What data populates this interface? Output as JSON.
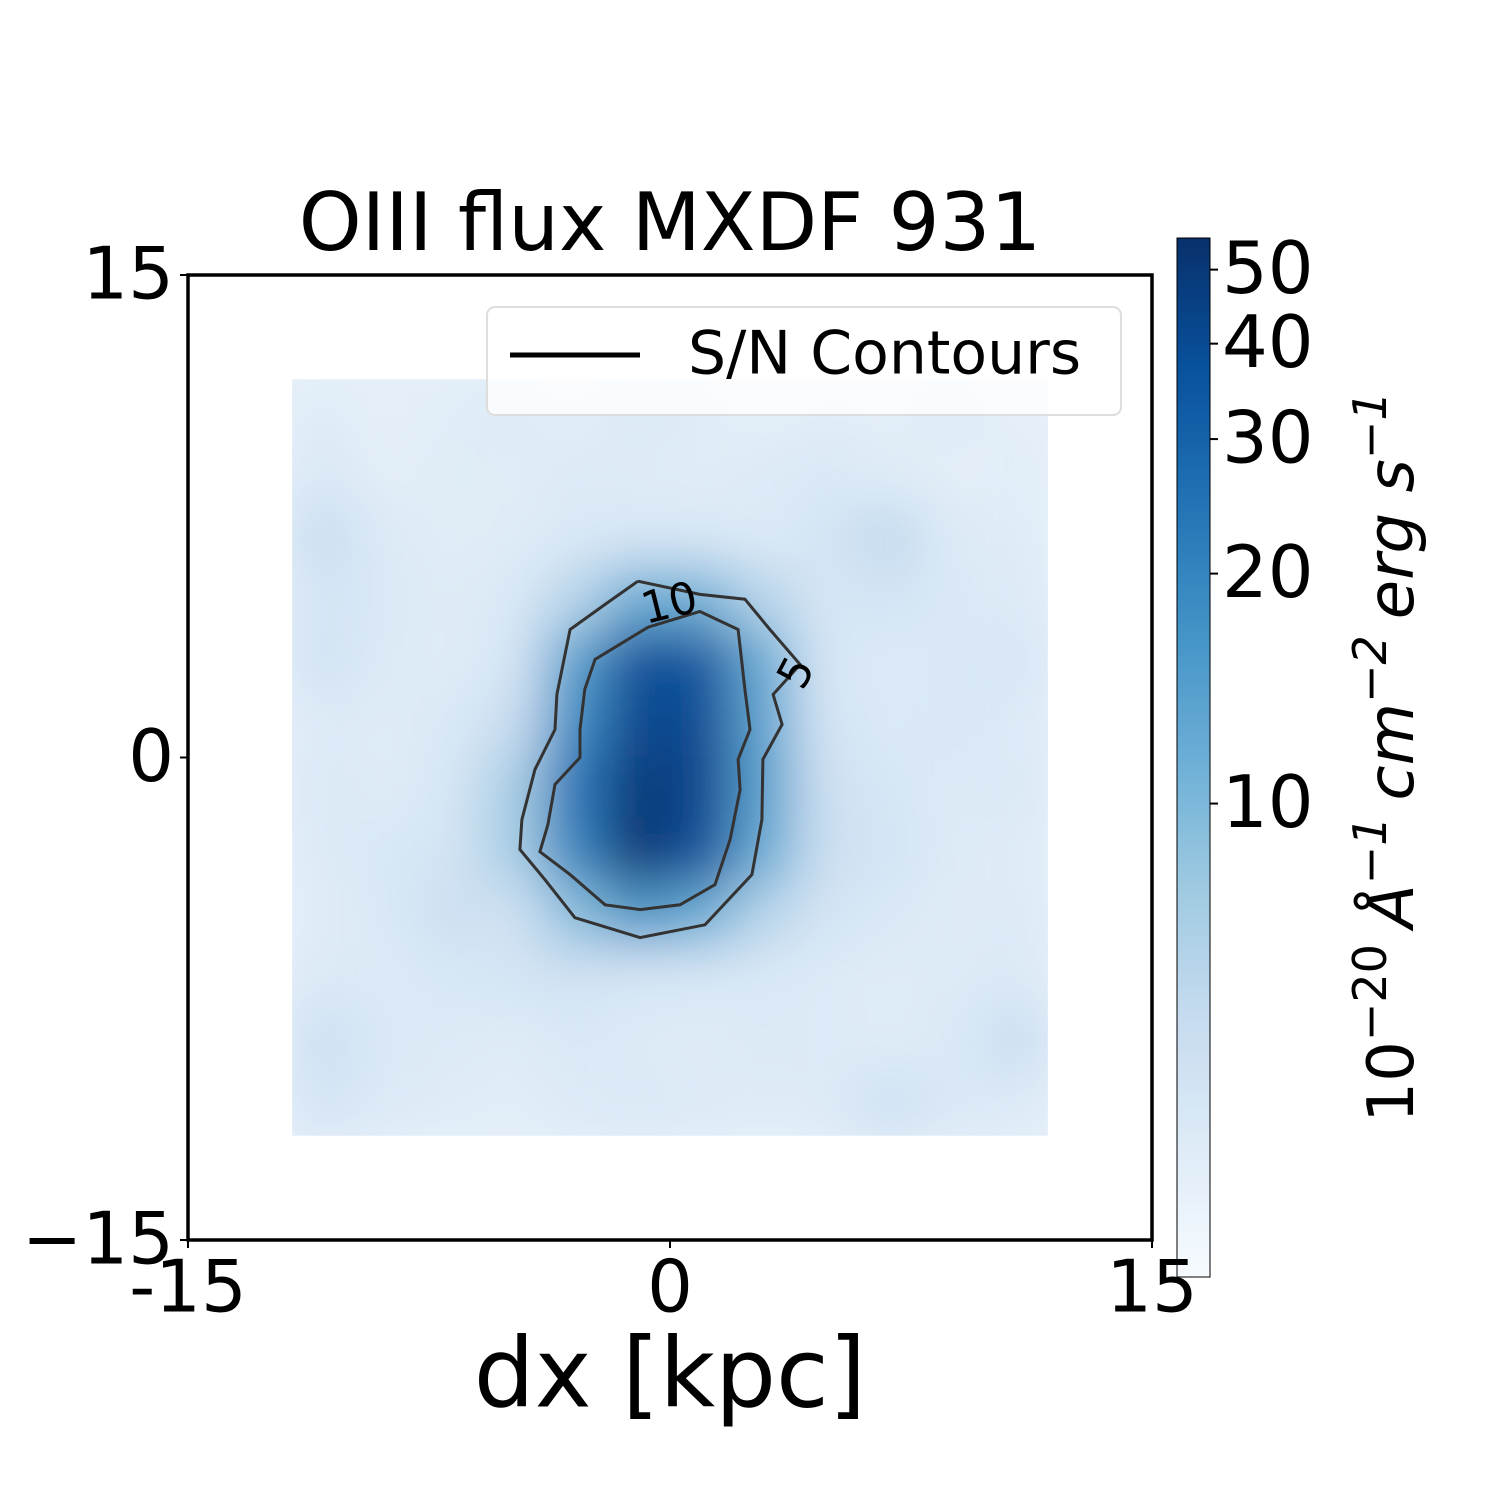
{
  "chart_data": {
    "type": "heatmap",
    "title": "OIII flux MXDF 931",
    "xlabel": "dx [kpc]",
    "xlim": [
      -15,
      15
    ],
    "xticks": [
      {
        "value": -15,
        "label": "-15"
      },
      0,
      15
    ],
    "ylim": [
      -15,
      15
    ],
    "yticks": [
      {
        "value": -15,
        "label": "−15"
      },
      0,
      15
    ],
    "colormap": "Blues",
    "color_scale": "log",
    "clim": [
      2.4,
      55
    ],
    "colorbar_ticks": [
      10,
      20,
      30,
      40,
      50
    ],
    "colorbar_label": [
      {
        "base": "10",
        "sup": "−20"
      },
      {
        "base": "Å",
        "sup": "−1"
      },
      {
        "base": "cm",
        "sup": "−2"
      },
      {
        "base": "erg s",
        "sup": "−1"
      }
    ],
    "x": [
      -10.78,
      -8.82,
      -6.86,
      -4.9,
      -2.94,
      -0.98,
      0.98,
      2.94,
      4.9,
      6.86,
      8.82,
      10.78
    ],
    "y": [
      10.78,
      8.82,
      6.86,
      4.9,
      2.94,
      0.98,
      -0.98,
      -2.94,
      -4.9,
      -6.86,
      -8.82,
      -10.78
    ],
    "z": [
      [
        3.5,
        3.2,
        3.4,
        3.6,
        3.3,
        3.8,
        3.5,
        3.2,
        3.4,
        3.3,
        3.6,
        3.2
      ],
      [
        3.8,
        3.3,
        3.5,
        3.4,
        3.6,
        3.5,
        3.4,
        3.6,
        3.8,
        3.5,
        3.3,
        3.4
      ],
      [
        5.0,
        3.6,
        3.4,
        3.5,
        3.8,
        4.0,
        3.9,
        3.6,
        4.2,
        5.5,
        3.6,
        3.5
      ],
      [
        4.2,
        3.8,
        3.5,
        3.8,
        6,
        12,
        11,
        6,
        4.0,
        4.2,
        3.8,
        3.6
      ],
      [
        4.4,
        3.6,
        3.5,
        4,
        14,
        38,
        36,
        12,
        4,
        3.6,
        3.8,
        4.0
      ],
      [
        3.6,
        3.5,
        3.8,
        5,
        18,
        42,
        40,
        13,
        4.2,
        3.7,
        3.9,
        3.6
      ],
      [
        3.8,
        3.5,
        4.0,
        7,
        24,
        50,
        42,
        14,
        4.6,
        4.0,
        3.6,
        3.8
      ],
      [
        3.6,
        3.9,
        4.2,
        7,
        20,
        52,
        38,
        12,
        4.8,
        4.2,
        3.6,
        3.5
      ],
      [
        3.5,
        3.8,
        4.8,
        4.4,
        9,
        16,
        12,
        6,
        4.2,
        3.8,
        3.5,
        3.6
      ],
      [
        3.7,
        3.6,
        3.9,
        4.2,
        4.4,
        4.0,
        3.9,
        3.8,
        3.6,
        3.5,
        3.6,
        3.7
      ],
      [
        4.8,
        3.8,
        3.6,
        3.5,
        3.8,
        3.6,
        3.5,
        3.7,
        3.6,
        3.5,
        3.7,
        5.0
      ],
      [
        4.2,
        3.6,
        3.5,
        3.4,
        3.6,
        3.8,
        3.6,
        3.5,
        3.6,
        4.6,
        3.8,
        3.6
      ]
    ],
    "contours": [
      {
        "level": 5,
        "x": [
          -1.0,
          0.93,
          2.33,
          3.11,
          4.05,
          3.21,
          3.49,
          2.89,
          2.86,
          2.55,
          1.09,
          -0.93,
          -2.96,
          -3.89,
          -4.67,
          -4.61,
          -4.2,
          -3.58,
          -3.52,
          -3.11,
          -2.02,
          -1.0
        ],
        "y": [
          5.48,
          5.07,
          4.92,
          3.98,
          2.89,
          1.96,
          1.03,
          -0.06,
          -1.93,
          -3.64,
          -5.2,
          -5.6,
          -4.98,
          -3.8,
          -2.86,
          -1.93,
          -0.37,
          0.87,
          1.96,
          3.98,
          4.76,
          5.48
        ]
      },
      {
        "level": 10,
        "x": [
          -0.68,
          0.93,
          2.12,
          2.33,
          2.49,
          2.12,
          2.18,
          1.87,
          1.4,
          0.31,
          -0.93,
          -2.02,
          -3.11,
          -4.05,
          -3.8,
          -3.58,
          -2.8,
          -2.8,
          -2.65,
          -2.33,
          -1.56,
          -0.68
        ],
        "y": [
          4.05,
          4.54,
          3.98,
          2.12,
          0.87,
          -0.06,
          -1.0,
          -2.55,
          -3.95,
          -4.58,
          -4.73,
          -4.58,
          -3.64,
          -2.93,
          -2.09,
          -0.84,
          0.0,
          0.87,
          2.12,
          3.05,
          3.52,
          4.05
        ]
      }
    ],
    "contour_color": "#333333",
    "legend": {
      "label": "S/N Contours",
      "color": "#000000",
      "position": "upper right"
    }
  }
}
